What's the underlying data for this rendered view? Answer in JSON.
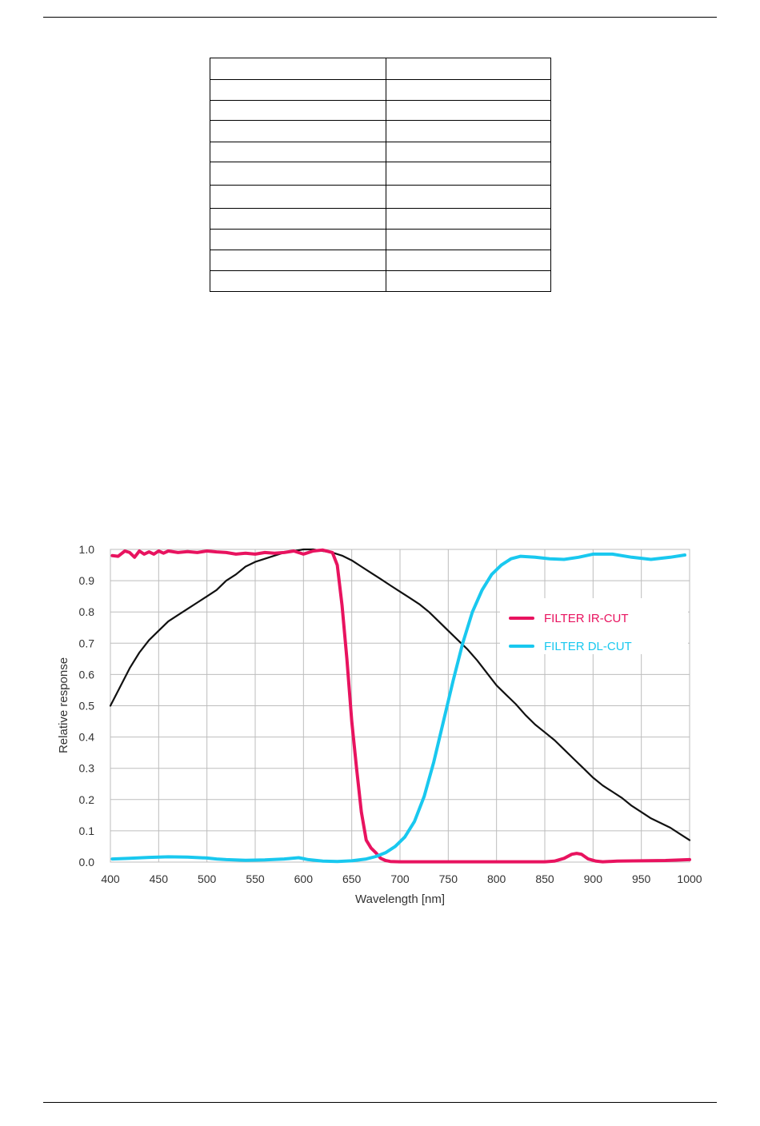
{
  "colors": {
    "sensor": "#111111",
    "ir_cut": "#e8135f",
    "dl_cut": "#19c8ef",
    "grid": "#bdbdbd",
    "axis_text": "#333333"
  },
  "table": {
    "rows": [
      [
        "",
        ""
      ],
      [
        "",
        ""
      ],
      [
        "",
        ""
      ],
      [
        "",
        ""
      ],
      [
        "",
        ""
      ],
      [
        "",
        ""
      ],
      [
        "",
        ""
      ],
      [
        "",
        ""
      ],
      [
        "",
        ""
      ],
      [
        "",
        ""
      ],
      [
        "",
        ""
      ]
    ]
  },
  "chart_data": {
    "type": "line",
    "title": "",
    "xlabel": "Wavelength [nm]",
    "ylabel": "Relative response",
    "xlim": [
      400,
      1000
    ],
    "ylim": [
      0.0,
      1.0
    ],
    "grid": true,
    "legend_position": "right",
    "x_ticks": [
      "400",
      "450",
      "500",
      "550",
      "600",
      "650",
      "700",
      "750",
      "800",
      "850",
      "900",
      "950",
      "1000"
    ],
    "y_ticks": [
      "0.0",
      "0.1",
      "0.2",
      "0.3",
      "0.4",
      "0.5",
      "0.6",
      "0.7",
      "0.8",
      "0.9",
      "1.0"
    ],
    "series": [
      {
        "name": "",
        "color_key": "sensor",
        "points": [
          [
            400,
            0.5
          ],
          [
            410,
            0.56
          ],
          [
            420,
            0.62
          ],
          [
            430,
            0.67
          ],
          [
            440,
            0.71
          ],
          [
            450,
            0.74
          ],
          [
            460,
            0.77
          ],
          [
            470,
            0.79
          ],
          [
            480,
            0.81
          ],
          [
            490,
            0.83
          ],
          [
            500,
            0.85
          ],
          [
            510,
            0.87
          ],
          [
            520,
            0.9
          ],
          [
            530,
            0.92
          ],
          [
            540,
            0.945
          ],
          [
            550,
            0.96
          ],
          [
            560,
            0.97
          ],
          [
            570,
            0.98
          ],
          [
            580,
            0.99
          ],
          [
            590,
            0.995
          ],
          [
            600,
            1.0
          ],
          [
            610,
            1.0
          ],
          [
            620,
            0.995
          ],
          [
            630,
            0.99
          ],
          [
            640,
            0.98
          ],
          [
            650,
            0.965
          ],
          [
            660,
            0.945
          ],
          [
            670,
            0.925
          ],
          [
            680,
            0.905
          ],
          [
            690,
            0.885
          ],
          [
            700,
            0.865
          ],
          [
            710,
            0.845
          ],
          [
            720,
            0.825
          ],
          [
            730,
            0.8
          ],
          [
            740,
            0.77
          ],
          [
            750,
            0.74
          ],
          [
            760,
            0.71
          ],
          [
            770,
            0.68
          ],
          [
            780,
            0.645
          ],
          [
            790,
            0.605
          ],
          [
            800,
            0.565
          ],
          [
            810,
            0.535
          ],
          [
            820,
            0.505
          ],
          [
            830,
            0.47
          ],
          [
            840,
            0.44
          ],
          [
            850,
            0.415
          ],
          [
            860,
            0.39
          ],
          [
            870,
            0.36
          ],
          [
            880,
            0.33
          ],
          [
            890,
            0.3
          ],
          [
            900,
            0.27
          ],
          [
            910,
            0.245
          ],
          [
            920,
            0.225
          ],
          [
            930,
            0.205
          ],
          [
            940,
            0.18
          ],
          [
            950,
            0.16
          ],
          [
            960,
            0.14
          ],
          [
            970,
            0.125
          ],
          [
            980,
            0.11
          ],
          [
            990,
            0.09
          ],
          [
            1000,
            0.07
          ]
        ]
      },
      {
        "name": "FILTER IR-CUT",
        "color_key": "ir_cut",
        "points": [
          [
            402,
            0.98
          ],
          [
            408,
            0.978
          ],
          [
            415,
            0.995
          ],
          [
            420,
            0.99
          ],
          [
            425,
            0.975
          ],
          [
            430,
            0.995
          ],
          [
            435,
            0.985
          ],
          [
            440,
            0.992
          ],
          [
            445,
            0.985
          ],
          [
            450,
            0.995
          ],
          [
            455,
            0.988
          ],
          [
            460,
            0.995
          ],
          [
            470,
            0.99
          ],
          [
            480,
            0.993
          ],
          [
            490,
            0.99
          ],
          [
            500,
            0.995
          ],
          [
            510,
            0.992
          ],
          [
            520,
            0.99
          ],
          [
            530,
            0.985
          ],
          [
            540,
            0.988
          ],
          [
            550,
            0.985
          ],
          [
            560,
            0.99
          ],
          [
            570,
            0.988
          ],
          [
            580,
            0.99
          ],
          [
            590,
            0.995
          ],
          [
            600,
            0.985
          ],
          [
            610,
            0.995
          ],
          [
            620,
            0.998
          ],
          [
            630,
            0.99
          ],
          [
            635,
            0.95
          ],
          [
            640,
            0.82
          ],
          [
            645,
            0.65
          ],
          [
            650,
            0.45
          ],
          [
            655,
            0.3
          ],
          [
            660,
            0.16
          ],
          [
            665,
            0.07
          ],
          [
            670,
            0.045
          ],
          [
            675,
            0.03
          ],
          [
            680,
            0.012
          ],
          [
            685,
            0.005
          ],
          [
            690,
            0.002
          ],
          [
            700,
            0.001
          ],
          [
            750,
            0.001
          ],
          [
            800,
            0.001
          ],
          [
            850,
            0.001
          ],
          [
            860,
            0.003
          ],
          [
            870,
            0.012
          ],
          [
            878,
            0.025
          ],
          [
            883,
            0.028
          ],
          [
            888,
            0.025
          ],
          [
            895,
            0.01
          ],
          [
            903,
            0.003
          ],
          [
            910,
            0.001
          ],
          [
            925,
            0.003
          ],
          [
            950,
            0.004
          ],
          [
            975,
            0.005
          ],
          [
            1000,
            0.008
          ]
        ]
      },
      {
        "name": "FILTER DL-CUT",
        "color_key": "dl_cut",
        "points": [
          [
            402,
            0.01
          ],
          [
            420,
            0.012
          ],
          [
            440,
            0.015
          ],
          [
            460,
            0.017
          ],
          [
            480,
            0.016
          ],
          [
            500,
            0.013
          ],
          [
            510,
            0.01
          ],
          [
            520,
            0.008
          ],
          [
            540,
            0.006
          ],
          [
            560,
            0.007
          ],
          [
            580,
            0.01
          ],
          [
            595,
            0.014
          ],
          [
            605,
            0.008
          ],
          [
            620,
            0.003
          ],
          [
            635,
            0.002
          ],
          [
            650,
            0.004
          ],
          [
            665,
            0.01
          ],
          [
            675,
            0.018
          ],
          [
            685,
            0.03
          ],
          [
            695,
            0.05
          ],
          [
            705,
            0.08
          ],
          [
            715,
            0.13
          ],
          [
            725,
            0.21
          ],
          [
            735,
            0.32
          ],
          [
            745,
            0.45
          ],
          [
            755,
            0.58
          ],
          [
            765,
            0.7
          ],
          [
            775,
            0.8
          ],
          [
            785,
            0.87
          ],
          [
            795,
            0.92
          ],
          [
            805,
            0.95
          ],
          [
            815,
            0.97
          ],
          [
            825,
            0.978
          ],
          [
            840,
            0.975
          ],
          [
            855,
            0.97
          ],
          [
            870,
            0.968
          ],
          [
            885,
            0.975
          ],
          [
            900,
            0.985
          ],
          [
            920,
            0.985
          ],
          [
            940,
            0.975
          ],
          [
            960,
            0.968
          ],
          [
            980,
            0.975
          ],
          [
            995,
            0.982
          ]
        ]
      }
    ]
  }
}
